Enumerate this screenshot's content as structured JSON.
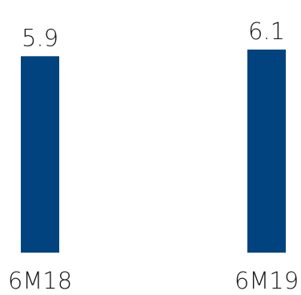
{
  "chart_data": {
    "type": "bar",
    "categories": [
      "6M18",
      "6M19"
    ],
    "values": [
      5.9,
      6.1
    ],
    "value_labels": [
      "5.9",
      "6.1"
    ],
    "title": "",
    "xlabel": "",
    "ylabel": "",
    "ylim": [
      0,
      6.1
    ],
    "grid": false,
    "legend": "none",
    "bar_color": "#00437f"
  }
}
